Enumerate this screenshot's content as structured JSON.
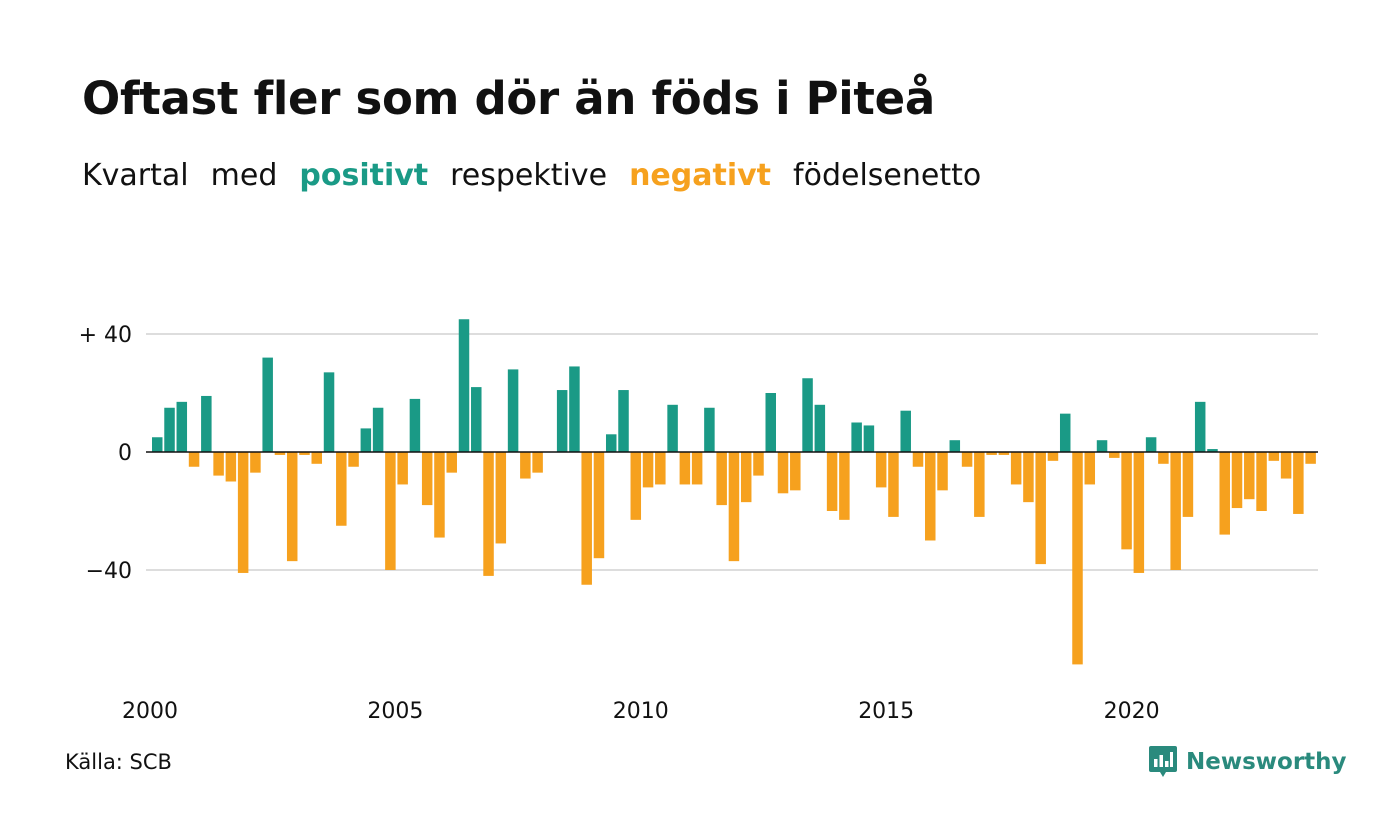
{
  "title": "Oftast fler som dör än föds i Piteå",
  "subtitle": {
    "word1": "Kvartal",
    "word2": "med",
    "positive": "positivt",
    "word3": "respektive",
    "negative": "negativt",
    "word4": "födelsenetto"
  },
  "source": "Källa: SCB",
  "brand": {
    "name": "Newsworthy",
    "icon": "newsworthy-logo-icon"
  },
  "colors": {
    "positive": "#1a9a86",
    "negative": "#f6a11e",
    "text": "#111111",
    "grid": "#dddddd",
    "brand": "#2a8a7d"
  },
  "chart_data": {
    "type": "bar",
    "title": "Oftast fler som dör än föds i Piteå",
    "subtitle": "Kvartal med positivt respektive negativt födelsenetto",
    "xlabel": "",
    "ylabel": "",
    "ylim": [
      -76,
      45
    ],
    "yticks": [
      {
        "value": 40,
        "label": "+ 40"
      },
      {
        "value": 0,
        "label": "0"
      },
      {
        "value": -40,
        "label": "−40"
      }
    ],
    "xticks": [
      {
        "value": 2000,
        "label": "2000"
      },
      {
        "value": 2005,
        "label": "2005"
      },
      {
        "value": 2010,
        "label": "2010"
      },
      {
        "value": 2015,
        "label": "2015"
      },
      {
        "value": 2020,
        "label": "2020"
      }
    ],
    "grid": true,
    "start_year": 2000,
    "values": [
      5,
      15,
      17,
      -5,
      19,
      -8,
      -10,
      -41,
      -7,
      32,
      -1,
      -37,
      -1,
      -4,
      27,
      -25,
      -5,
      8,
      15,
      -40,
      -11,
      18,
      -18,
      -29,
      -7,
      45,
      22,
      -42,
      -31,
      28,
      -9,
      -7,
      0,
      21,
      29,
      -45,
      -36,
      6,
      21,
      -23,
      -12,
      -11,
      16,
      -11,
      -11,
      15,
      -18,
      -37,
      -17,
      -8,
      20,
      -14,
      -13,
      25,
      16,
      -20,
      -23,
      10,
      9,
      -12,
      -22,
      14,
      -5,
      -30,
      -13,
      4,
      -5,
      -22,
      -1,
      -1,
      -11,
      -17,
      -38,
      -3,
      13,
      -72,
      -11,
      4,
      -2,
      -33,
      -41,
      5,
      -4,
      -40,
      -22,
      17,
      1,
      -28,
      -19,
      -16,
      -20,
      -3,
      -9,
      -21,
      -4
    ]
  }
}
